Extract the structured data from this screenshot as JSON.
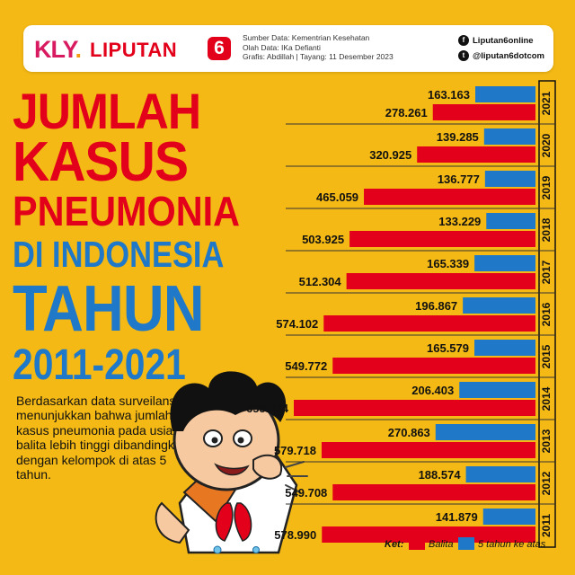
{
  "header": {
    "kly": "KLY",
    "brand": "LIPUTAN",
    "brand_num": "6",
    "source_line": "Sumber Data: Kementrian Kesehatan",
    "processed_line": "Olah Data: IKa Defianti",
    "graphic_line": "Grafis: Abdillah | Tayang: 11 Desember 2023",
    "facebook": "Liputan6online",
    "twitter": "@liputan6dotcom"
  },
  "title": {
    "line1": "JUMLAH",
    "line2": "KASUS",
    "line3": "PNEUMONIA",
    "line4": "DI INDONESIA",
    "line5": "TAHUN",
    "line6": "2011-2021"
  },
  "description": "Berdasarkan data surveilans menunjukkan bahwa jumlah kasus pneumonia pada usia balita lebih tinggi dibandingkan dengan kelompok di atas 5 tahun.",
  "colors": {
    "background": "#f5b915",
    "balita": "#e2001a",
    "over5": "#1f78c8",
    "title_red": "#e2001a",
    "title_blue": "#1f78c8"
  },
  "chart_data": {
    "type": "bar",
    "orientation": "horizontal",
    "categories": [
      "2021",
      "2020",
      "2019",
      "2018",
      "2017",
      "2016",
      "2015",
      "2014",
      "2013",
      "2012",
      "2011"
    ],
    "series": [
      {
        "name": "5 tahun ke atas",
        "values": [
          163163,
          139285,
          136777,
          133229,
          165339,
          196867,
          165579,
          206403,
          270863,
          188574,
          141879
        ],
        "labels": [
          "163.163",
          "139.285",
          "136.777",
          "133.229",
          "165.339",
          "196.867",
          "165.579",
          "206.403",
          "270.863",
          "188.574",
          "141.879"
        ]
      },
      {
        "name": "Balita",
        "values": [
          278261,
          320925,
          465059,
          503925,
          512304,
          574102,
          549772,
          655134,
          579718,
          549708,
          578990
        ],
        "labels": [
          "278.261",
          "320.925",
          "465.059",
          "503.925",
          "512.304",
          "574.102",
          "549.772",
          "655.134",
          "579.718",
          "549.708",
          "578.990"
        ]
      }
    ],
    "legend": {
      "label": "Ket:",
      "placement": "bottom-right"
    },
    "xlim": [
      0,
      700000
    ]
  }
}
